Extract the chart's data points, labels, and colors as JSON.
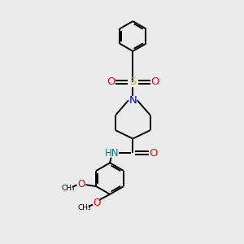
{
  "background_color": "#ebebeb",
  "atom_colors": {
    "C": "#000000",
    "N": "#0000cc",
    "O": "#ff0000",
    "S": "#cccc00",
    "H": "#008080",
    "NH": "#008080"
  },
  "bond_color": "#000000",
  "bond_width": 1.4,
  "figsize": [
    3.0,
    3.0
  ],
  "dpi": 100,
  "xlim": [
    0,
    10
  ],
  "ylim": [
    0,
    10
  ]
}
